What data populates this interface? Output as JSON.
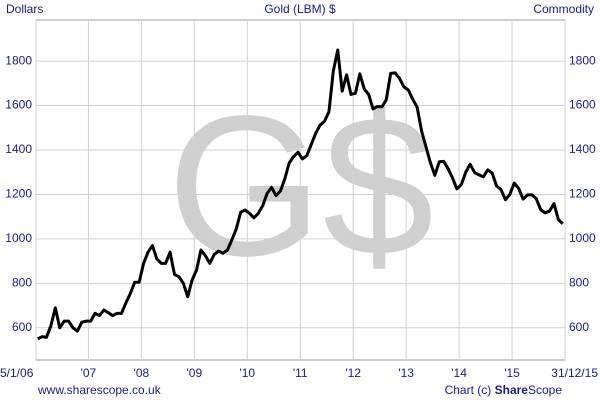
{
  "chart_data": {
    "type": "line",
    "title": "Gold (LBM) $",
    "y_label": "Dollars",
    "y2_label": "Commodity",
    "watermark": "G$",
    "footer_left": "www.sharescope.co.uk",
    "footer_credit": "Chart (c)",
    "footer_brand_bold": "Share",
    "footer_brand": "Scope",
    "xlim": [
      2006.01,
      2016.0
    ],
    "xticks": [
      {
        "value": 2006.01,
        "label": "5/1/06"
      },
      {
        "value": 2007,
        "label": "'07"
      },
      {
        "value": 2008,
        "label": "'08"
      },
      {
        "value": 2009,
        "label": "'09"
      },
      {
        "value": 2010,
        "label": "'10"
      },
      {
        "value": 2011,
        "label": "'11"
      },
      {
        "value": 2012,
        "label": "'12"
      },
      {
        "value": 2013,
        "label": "'13"
      },
      {
        "value": 2014,
        "label": "'14"
      },
      {
        "value": 2015,
        "label": "'15"
      },
      {
        "value": 2016.0,
        "label": "31/12/15"
      }
    ],
    "ylim": [
      455,
      1985
    ],
    "yticks": [
      600,
      800,
      1000,
      1200,
      1400,
      1600,
      1800
    ],
    "grid": true,
    "series": [
      {
        "name": "Gold (LBM) $",
        "color": "#000000",
        "x": [
          2006.042,
          2006.125,
          2006.208,
          2006.292,
          2006.375,
          2006.458,
          2006.542,
          2006.625,
          2006.708,
          2006.792,
          2006.875,
          2006.958,
          2007.042,
          2007.125,
          2007.208,
          2007.292,
          2007.375,
          2007.458,
          2007.542,
          2007.625,
          2007.708,
          2007.792,
          2007.875,
          2007.958,
          2008.042,
          2008.125,
          2008.208,
          2008.292,
          2008.375,
          2008.458,
          2008.542,
          2008.625,
          2008.708,
          2008.792,
          2008.875,
          2008.958,
          2009.042,
          2009.125,
          2009.208,
          2009.292,
          2009.375,
          2009.458,
          2009.542,
          2009.625,
          2009.708,
          2009.792,
          2009.875,
          2009.958,
          2010.042,
          2010.125,
          2010.208,
          2010.292,
          2010.375,
          2010.458,
          2010.542,
          2010.625,
          2010.708,
          2010.792,
          2010.875,
          2010.958,
          2011.042,
          2011.125,
          2011.208,
          2011.292,
          2011.375,
          2011.458,
          2011.542,
          2011.625,
          2011.708,
          2011.792,
          2011.875,
          2011.958,
          2012.042,
          2012.125,
          2012.208,
          2012.292,
          2012.375,
          2012.458,
          2012.542,
          2012.625,
          2012.708,
          2012.792,
          2012.875,
          2012.958,
          2013.042,
          2013.125,
          2013.208,
          2013.292,
          2013.375,
          2013.458,
          2013.542,
          2013.625,
          2013.708,
          2013.792,
          2013.875,
          2013.958,
          2014.042,
          2014.125,
          2014.208,
          2014.292,
          2014.375,
          2014.458,
          2014.542,
          2014.625,
          2014.708,
          2014.792,
          2014.875,
          2014.958,
          2015.042,
          2015.125,
          2015.208,
          2015.292,
          2015.375,
          2015.458,
          2015.542,
          2015.625,
          2015.708,
          2015.792,
          2015.875,
          2015.958
        ],
        "values": [
          550,
          560,
          557,
          610,
          690,
          600,
          630,
          630,
          600,
          585,
          625,
          630,
          630,
          665,
          655,
          680,
          668,
          655,
          665,
          665,
          712,
          755,
          805,
          805,
          890,
          940,
          970,
          910,
          890,
          890,
          940,
          840,
          830,
          800,
          740,
          815,
          860,
          950,
          925,
          890,
          930,
          945,
          935,
          950,
          995,
          1045,
          1120,
          1130,
          1115,
          1095,
          1115,
          1150,
          1205,
          1232,
          1195,
          1215,
          1270,
          1342,
          1370,
          1390,
          1360,
          1375,
          1425,
          1475,
          1512,
          1529,
          1572,
          1756,
          1850,
          1665,
          1738,
          1650,
          1655,
          1743,
          1675,
          1650,
          1585,
          1596,
          1594,
          1626,
          1745,
          1747,
          1722,
          1684,
          1670,
          1628,
          1592,
          1485,
          1414,
          1343,
          1286,
          1347,
          1349,
          1316,
          1275,
          1225,
          1244,
          1300,
          1336,
          1299,
          1288,
          1279,
          1311,
          1296,
          1238,
          1222,
          1176,
          1200,
          1251,
          1227,
          1179,
          1198,
          1198,
          1181,
          1131,
          1117,
          1125,
          1159,
          1086,
          1068
        ]
      }
    ]
  }
}
